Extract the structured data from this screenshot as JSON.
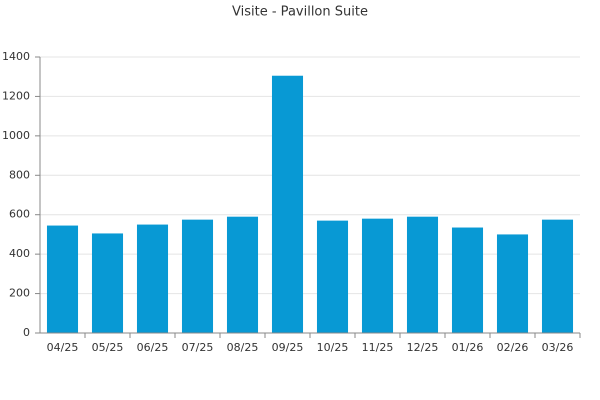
{
  "chart_data": {
    "type": "bar",
    "title": "Visite - Pavillon Suite",
    "categories": [
      "04/25",
      "05/25",
      "06/25",
      "07/25",
      "08/25",
      "09/25",
      "10/25",
      "11/25",
      "12/25",
      "01/26",
      "02/26",
      "03/26"
    ],
    "values": [
      545,
      505,
      550,
      575,
      590,
      1305,
      570,
      580,
      590,
      535,
      500,
      575
    ],
    "color": "#0899d4",
    "ylim": [
      0,
      1400
    ],
    "yticks": [
      0,
      200,
      400,
      600,
      800,
      1000,
      1200,
      1400
    ],
    "grid": true
  }
}
